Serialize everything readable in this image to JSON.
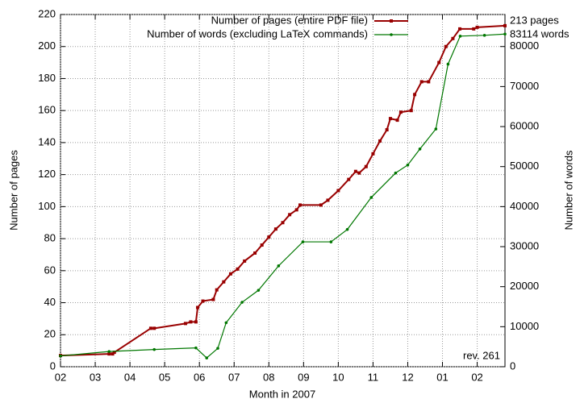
{
  "chart_data": {
    "type": "line",
    "xlabel": "Month in 2007",
    "ylabel": "Number of pages",
    "y2label": "Number of words",
    "xlim": [
      0,
      12.8
    ],
    "xticks": [
      {
        "value": 0,
        "label": "02"
      },
      {
        "value": 1,
        "label": "03"
      },
      {
        "value": 2,
        "label": "04"
      },
      {
        "value": 3,
        "label": "05"
      },
      {
        "value": 4,
        "label": "06"
      },
      {
        "value": 5,
        "label": "07"
      },
      {
        "value": 6,
        "label": "08"
      },
      {
        "value": 7,
        "label": "09"
      },
      {
        "value": 8,
        "label": "10"
      },
      {
        "value": 9,
        "label": "11"
      },
      {
        "value": 10,
        "label": "12"
      },
      {
        "value": 11,
        "label": "01"
      },
      {
        "value": 12,
        "label": "02"
      }
    ],
    "ylim": [
      0,
      220
    ],
    "yticks": [
      0,
      20,
      40,
      60,
      80,
      100,
      120,
      140,
      160,
      180,
      200,
      220
    ],
    "y2lim": [
      0,
      88000
    ],
    "y2ticks": [
      0,
      10000,
      20000,
      30000,
      40000,
      50000,
      60000,
      70000,
      80000
    ],
    "grid": true,
    "legend": "top-right",
    "series": [
      {
        "name": "Number of pages (entire PDF file)",
        "color": "#990000",
        "marker": "square",
        "x": [
          0,
          1.4,
          1.5,
          1.55,
          2.6,
          2.7,
          3.6,
          3.75,
          3.9,
          3.95,
          4.1,
          4.4,
          4.5,
          4.7,
          4.9,
          5.1,
          5.3,
          5.6,
          5.8,
          6.0,
          6.2,
          6.4,
          6.6,
          6.8,
          6.9,
          7.5,
          7.7,
          8.0,
          8.3,
          8.5,
          8.6,
          8.8,
          9.0,
          9.2,
          9.4,
          9.5,
          9.7,
          9.8,
          10.1,
          10.2,
          10.4,
          10.6,
          10.9,
          11.1,
          11.3,
          11.5,
          11.9,
          12.0,
          12.8
        ],
        "values": [
          7,
          8,
          8,
          9,
          24,
          24,
          27,
          28,
          28,
          37,
          41,
          42,
          48,
          53,
          58,
          61,
          66,
          71,
          76,
          81,
          86,
          90,
          95,
          98,
          101,
          101,
          104,
          110,
          117,
          122,
          121,
          125,
          133,
          141,
          148,
          155,
          154,
          159,
          160,
          170,
          178,
          178,
          190,
          200,
          205,
          211,
          211,
          212,
          213
        ]
      },
      {
        "name": "Number of words (excluding LaTeX commands)",
        "color": "#007700",
        "marker": "dot",
        "axis": "y2",
        "x": [
          0,
          1.4,
          2.7,
          3.9,
          4.21,
          4.53,
          4.77,
          5.23,
          5.7,
          6.28,
          6.98,
          7.79,
          8.26,
          8.95,
          9.65,
          10.0,
          10.35,
          10.81,
          11.16,
          11.51,
          12.21,
          12.8
        ],
        "values": [
          2700,
          3800,
          4300,
          4700,
          2200,
          4600,
          11000,
          16100,
          19100,
          25200,
          31200,
          31200,
          34300,
          42300,
          48400,
          50400,
          54400,
          59400,
          75600,
          82600,
          82800,
          83114
        ]
      }
    ],
    "annotations": [
      "213 pages",
      "83114 words",
      "rev. 261"
    ]
  }
}
